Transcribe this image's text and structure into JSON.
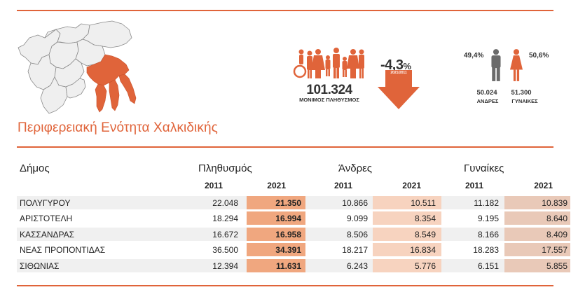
{
  "region": {
    "title": "Περιφερειακή Ενότητα Χαλκιδικής"
  },
  "population": {
    "total": "101.324",
    "label": "ΜΟΝΙΜΟΣ ΠΛΗΘΥΣΜΟΣ",
    "change": "-4,3",
    "change_unit": "%",
    "change_period": "2021/2011"
  },
  "gender": {
    "male_pct": "49,4%",
    "female_pct": "50,6%",
    "male_count": "50.024",
    "female_count": "51.300",
    "male_label": "ΑΝΔΡΕΣ",
    "female_label": "ΓΥΝΑΙΚΕΣ"
  },
  "colors": {
    "accent": "#e0643a",
    "col_total_2021": "#f0a77f",
    "col_men_2021": "#f7d3bf",
    "col_women_2021": "#e9c9b8"
  },
  "table": {
    "headers": {
      "municipality": "Δήμος",
      "population": "Πληθυσμός",
      "men": "Άνδρες",
      "women": "Γυναίκες"
    },
    "years": [
      "2011",
      "2021"
    ],
    "rows": [
      {
        "name": "ΠΟΛΥΓΥΡΟΥ",
        "p2011": "22.048",
        "p2021": "21.350",
        "m2011": "10.866",
        "m2021": "10.511",
        "w2011": "11.182",
        "w2021": "10.839"
      },
      {
        "name": "ΑΡΙΣΤΟΤΕΛΗ",
        "p2011": "18.294",
        "p2021": "16.994",
        "m2011": "9.099",
        "m2021": "8.354",
        "w2011": "9.195",
        "w2021": "8.640"
      },
      {
        "name": "ΚΑΣΣΑΝΔΡΑΣ",
        "p2011": "16.672",
        "p2021": "16.958",
        "m2011": "8.506",
        "m2021": "8.549",
        "w2011": "8.166",
        "w2021": "8.409"
      },
      {
        "name": "ΝΕΑΣ ΠΡΟΠΟΝΤΙΔΑΣ",
        "p2011": "36.500",
        "p2021": "34.391",
        "m2011": "18.217",
        "m2021": "16.834",
        "w2011": "18.283",
        "w2021": "17.557"
      },
      {
        "name": "ΣΙΘΩΝΙΑΣ",
        "p2011": "12.394",
        "p2021": "11.631",
        "m2011": "6.243",
        "m2021": "5.776",
        "w2011": "6.151",
        "w2021": "5.855"
      }
    ]
  }
}
